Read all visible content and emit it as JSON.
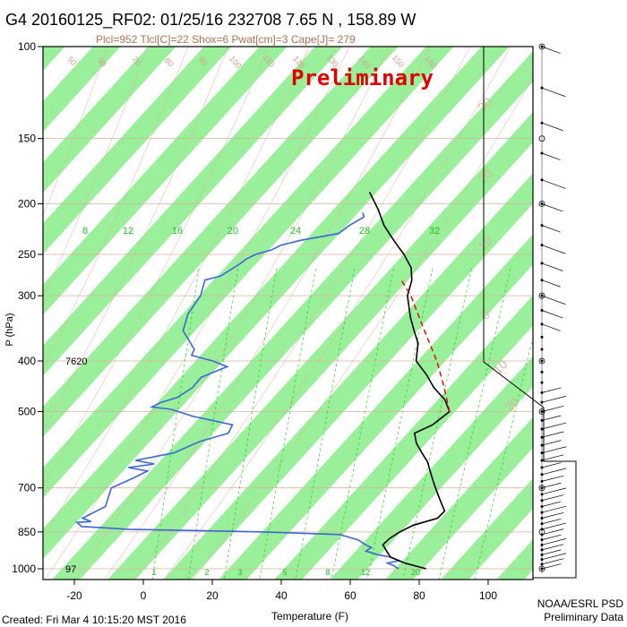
{
  "header": {
    "title": "G4 20160125_RF02: 01/25/16 232708   7.65 N , 158.89 W",
    "subtitle": "Plcl=952 Tlcl[C]=22 Shox=6 Pwat[cm]=3 Cape[J]= 279",
    "watermark": "Preliminary"
  },
  "footer": {
    "created": "Created: Fri Mar  4 10:15:20 MST 2016",
    "credit_line1": "NOAA/ESRL PSD",
    "credit_line2": "Preliminary Data"
  },
  "colors": {
    "temperature": "#000000",
    "dewpoint": "#3a66d6",
    "parcel": "#e00000",
    "bands": "#9af09a",
    "isotherms": "#d9b29a",
    "isobars": "#d9b29a",
    "moist_adiabats": "#00cc00",
    "watermark": "#e00000"
  },
  "chart_data": {
    "type": "skew-t",
    "xlabel": "Temperature (F)",
    "ylabel": "P (hPa)",
    "x_ticks": [
      -20,
      0,
      20,
      40,
      60,
      80,
      100
    ],
    "y_ticks": [
      100,
      150,
      200,
      250,
      300,
      400,
      500,
      700,
      850,
      1000
    ],
    "xlim": [
      -27,
      122
    ],
    "ylim": [
      1050,
      100
    ],
    "dry_adiabat_labels": [
      "50",
      "60",
      "70",
      "80",
      "90",
      "100",
      "110",
      "120",
      "130",
      "140",
      "150",
      "160"
    ],
    "isotherm_labels": [
      "30",
      "20",
      "10",
      "0",
      "10",
      "20",
      "30",
      "40",
      "50",
      "60"
    ],
    "mixing_ratio_labels": [
      "8",
      "12",
      "16",
      "20",
      "24",
      "28",
      "32"
    ],
    "bottom_mixing_ratio_labels": [
      "1",
      "2",
      "3",
      "5",
      "8",
      "12",
      "20"
    ],
    "height_labels": [
      {
        "p": 400,
        "text": "7620"
      },
      {
        "p": 1000,
        "text": "97"
      }
    ],
    "temperature": [
      {
        "p": 1000,
        "t": 82
      },
      {
        "p": 975,
        "t": 75
      },
      {
        "p": 950,
        "t": 70
      },
      {
        "p": 925,
        "t": 68
      },
      {
        "p": 900,
        "t": 66
      },
      {
        "p": 875,
        "t": 67
      },
      {
        "p": 850,
        "t": 69
      },
      {
        "p": 825,
        "t": 72
      },
      {
        "p": 800,
        "t": 78
      },
      {
        "p": 775,
        "t": 79
      },
      {
        "p": 750,
        "t": 77
      },
      {
        "p": 725,
        "t": 75
      },
      {
        "p": 700,
        "t": 73
      },
      {
        "p": 675,
        "t": 71
      },
      {
        "p": 650,
        "t": 69
      },
      {
        "p": 625,
        "t": 67
      },
      {
        "p": 600,
        "t": 64
      },
      {
        "p": 575,
        "t": 61
      },
      {
        "p": 550,
        "t": 59
      },
      {
        "p": 530,
        "t": 63
      },
      {
        "p": 500,
        "t": 66
      },
      {
        "p": 475,
        "t": 63
      },
      {
        "p": 450,
        "t": 58
      },
      {
        "p": 425,
        "t": 54
      },
      {
        "p": 400,
        "t": 49
      },
      {
        "p": 385,
        "t": 48
      },
      {
        "p": 370,
        "t": 47
      },
      {
        "p": 350,
        "t": 44
      },
      {
        "p": 330,
        "t": 41
      },
      {
        "p": 300,
        "t": 37
      },
      {
        "p": 280,
        "t": 36
      },
      {
        "p": 265,
        "t": 34
      },
      {
        "p": 250,
        "t": 30
      },
      {
        "p": 235,
        "t": 25
      },
      {
        "p": 220,
        "t": 20
      },
      {
        "p": 205,
        "t": 16
      },
      {
        "p": 190,
        "t": 11
      }
    ],
    "dewpoint": [
      {
        "p": 1000,
        "t": 74
      },
      {
        "p": 985,
        "t": 72
      },
      {
        "p": 975,
        "t": 70
      },
      {
        "p": 965,
        "t": 73
      },
      {
        "p": 950,
        "t": 70
      },
      {
        "p": 940,
        "t": 66
      },
      {
        "p": 925,
        "t": 62
      },
      {
        "p": 910,
        "t": 63
      },
      {
        "p": 900,
        "t": 61
      },
      {
        "p": 880,
        "t": 58
      },
      {
        "p": 860,
        "t": 52
      },
      {
        "p": 850,
        "t": 30
      },
      {
        "p": 840,
        "t": -10
      },
      {
        "p": 830,
        "t": -24
      },
      {
        "p": 815,
        "t": -26
      },
      {
        "p": 812,
        "t": -22
      },
      {
        "p": 800,
        "t": -25
      },
      {
        "p": 760,
        "t": -20
      },
      {
        "p": 700,
        "t": -21
      },
      {
        "p": 670,
        "t": -16
      },
      {
        "p": 650,
        "t": -13
      },
      {
        "p": 640,
        "t": -19
      },
      {
        "p": 630,
        "t": -12
      },
      {
        "p": 620,
        "t": -18
      },
      {
        "p": 600,
        "t": -8
      },
      {
        "p": 570,
        "t": -2
      },
      {
        "p": 550,
        "t": 5
      },
      {
        "p": 530,
        "t": 5
      },
      {
        "p": 510,
        "t": -8
      },
      {
        "p": 495,
        "t": -15
      },
      {
        "p": 490,
        "t": -21
      },
      {
        "p": 480,
        "t": -19
      },
      {
        "p": 470,
        "t": -15
      },
      {
        "p": 450,
        "t": -12
      },
      {
        "p": 430,
        "t": -11
      },
      {
        "p": 420,
        "t": -8
      },
      {
        "p": 410,
        "t": -5
      },
      {
        "p": 400,
        "t": -10
      },
      {
        "p": 390,
        "t": -17
      },
      {
        "p": 380,
        "t": -17
      },
      {
        "p": 375,
        "t": -18
      },
      {
        "p": 350,
        "t": -23
      },
      {
        "p": 325,
        "t": -24
      },
      {
        "p": 300,
        "t": -23
      },
      {
        "p": 280,
        "t": -24
      },
      {
        "p": 275,
        "t": -20
      },
      {
        "p": 260,
        "t": -16
      },
      {
        "p": 255,
        "t": -15
      },
      {
        "p": 250,
        "t": -13
      },
      {
        "p": 245,
        "t": -9
      },
      {
        "p": 240,
        "t": -7
      },
      {
        "p": 235,
        "t": -2
      },
      {
        "p": 228,
        "t": 8
      },
      {
        "p": 220,
        "t": 10
      },
      {
        "p": 212,
        "t": 13
      },
      {
        "p": 208,
        "t": 12
      }
    ],
    "parcel": [
      {
        "p": 500,
        "t": 66
      },
      {
        "p": 450,
        "t": 61
      },
      {
        "p": 400,
        "t": 55
      },
      {
        "p": 350,
        "t": 47
      },
      {
        "p": 300,
        "t": 38
      },
      {
        "p": 280,
        "t": 33
      }
    ]
  }
}
